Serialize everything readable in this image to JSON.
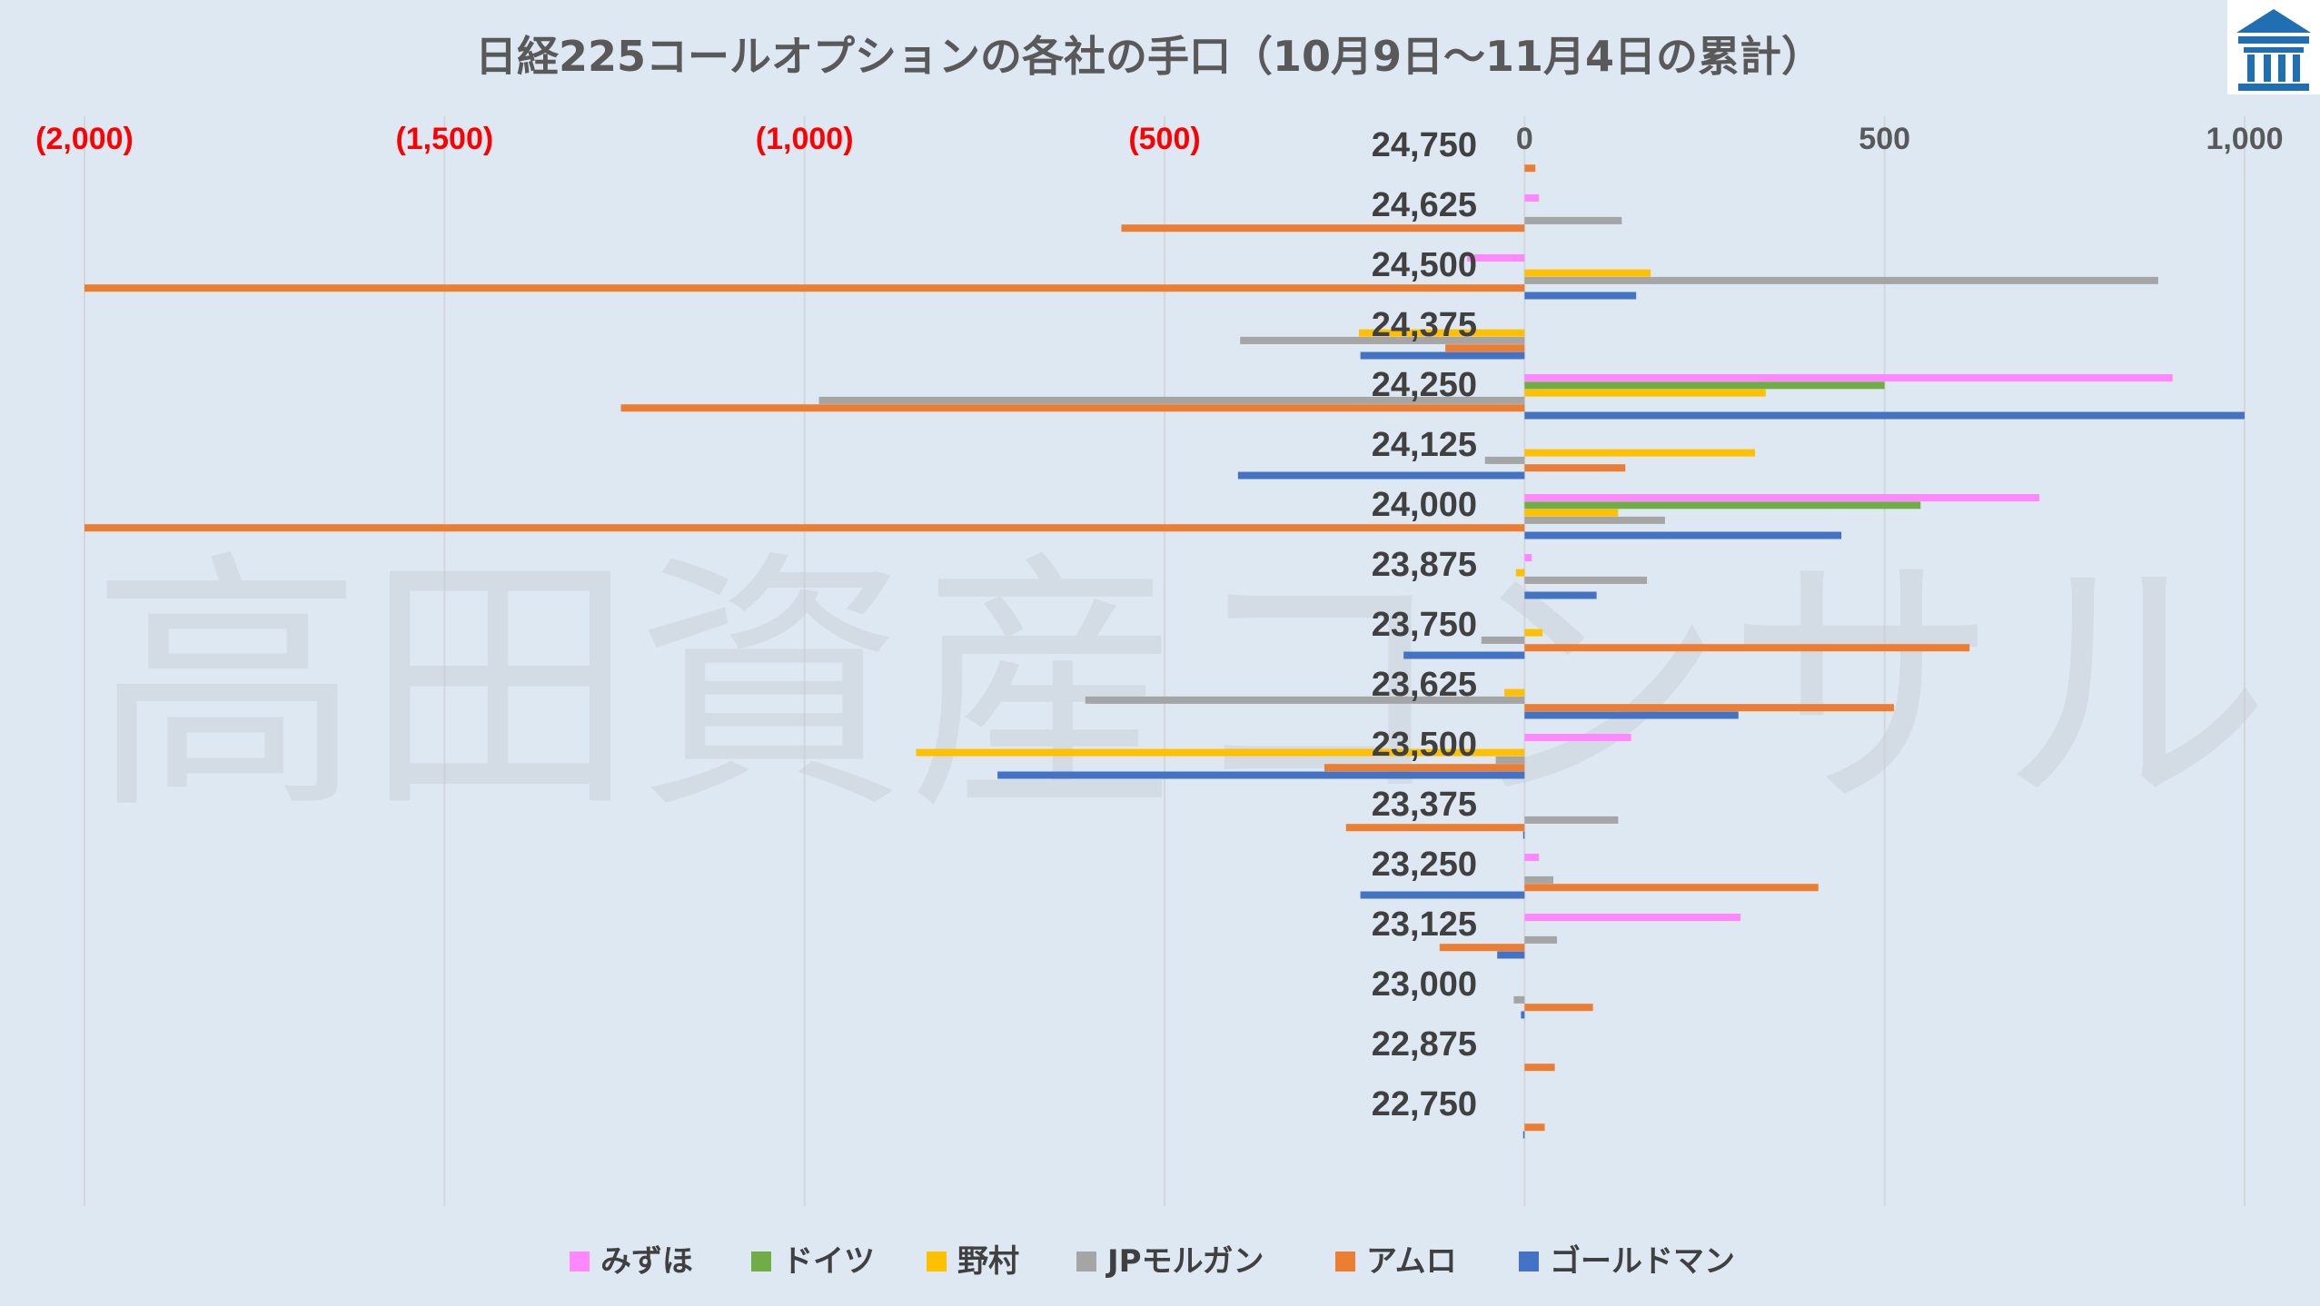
{
  "watermark": "高田資産コンサル",
  "logo_icon": "building-logo-icon",
  "colors": {
    "background": "#dde8f3",
    "gridline": "#d3d7dc",
    "negative_tick": "#ff0000",
    "positive_tick": "#595959",
    "logo": "#1f6fb2"
  },
  "chart_data": {
    "type": "bar",
    "orientation": "horizontal",
    "title": "日経225コールオプションの各社の手口（10月9日～11月4日の累計）",
    "xlim": [
      -2000,
      1000
    ],
    "x_ticks": [
      -2000,
      -1500,
      -1000,
      -500,
      0,
      500,
      1000
    ],
    "x_tick_labels": [
      "(2,000)",
      "(1,500)",
      "(1,000)",
      "(500)",
      "0",
      "500",
      "1,000"
    ],
    "x_axis_position": "top",
    "grid": true,
    "legend_position": "bottom",
    "categories": [
      "24,750",
      "24,625",
      "24,500",
      "24,375",
      "24,250",
      "24,125",
      "24,000",
      "23,875",
      "23,750",
      "23,625",
      "23,500",
      "23,375",
      "23,250",
      "23,125",
      "23,000",
      "22,875",
      "22,750"
    ],
    "series": [
      {
        "name": "みずほ",
        "color": "#ff88ff",
        "values": [
          0,
          20,
          -80,
          0,
          900,
          0,
          715,
          10,
          0,
          0,
          148,
          0,
          20,
          300,
          0,
          0,
          0
        ]
      },
      {
        "name": "ドイツ",
        "color": "#70ad47",
        "values": [
          0,
          0,
          0,
          0,
          500,
          0,
          550,
          0,
          0,
          0,
          0,
          0,
          0,
          0,
          0,
          0,
          0
        ]
      },
      {
        "name": "野村",
        "color": "#ffc000",
        "values": [
          0,
          0,
          175,
          -230,
          335,
          320,
          130,
          -12,
          25,
          -28,
          -845,
          0,
          0,
          0,
          0,
          0,
          0
        ]
      },
      {
        "name": "JPモルガン",
        "color": "#a5a5a5",
        "values": [
          0,
          135,
          880,
          -395,
          -980,
          -55,
          195,
          170,
          -60,
          -610,
          -40,
          130,
          40,
          45,
          -15,
          0,
          0
        ]
      },
      {
        "name": "アムロ",
        "color": "#ed7d31",
        "values": [
          15,
          -560,
          -2000,
          -110,
          -1255,
          140,
          -2000,
          0,
          618,
          513,
          -278,
          -248,
          408,
          -118,
          95,
          42,
          28
        ]
      },
      {
        "name": "ゴールドマン",
        "color": "#4472c4",
        "values": [
          0,
          0,
          155,
          -228,
          1000,
          -398,
          440,
          100,
          -168,
          297,
          -732,
          -2,
          -228,
          -38,
          -5,
          0,
          -2
        ]
      }
    ]
  }
}
